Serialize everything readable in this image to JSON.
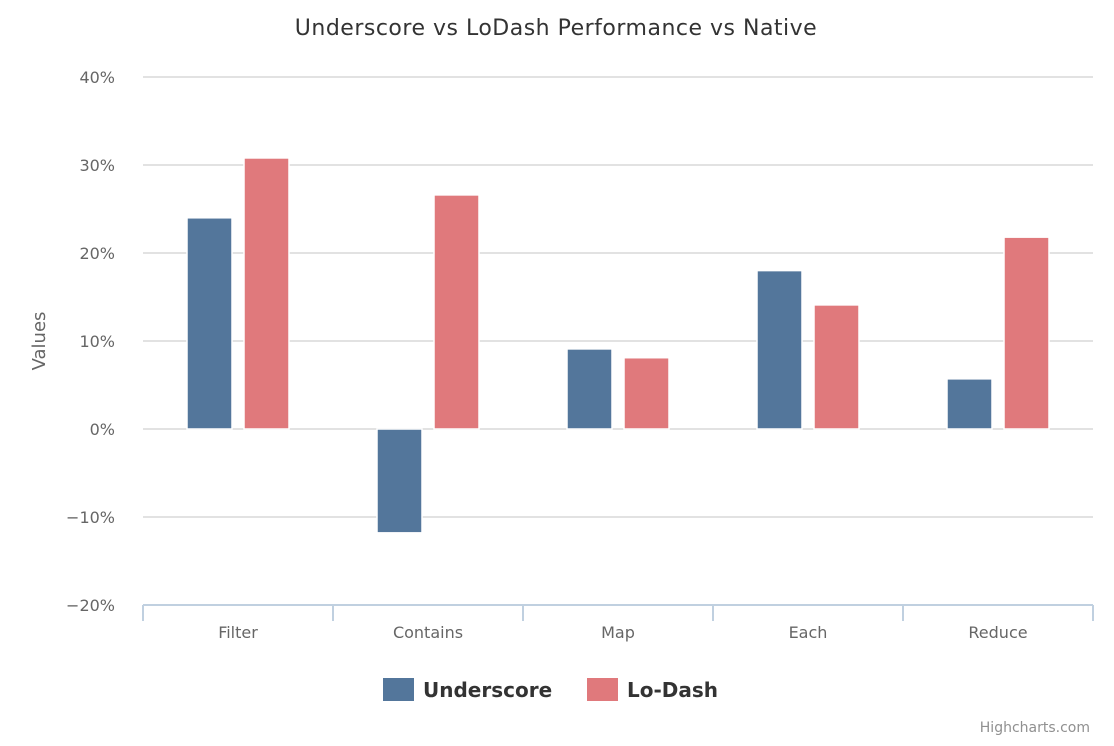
{
  "chart_data": {
    "type": "bar",
    "title": "Underscore vs LoDash Performance vs Native",
    "categories": [
      "Filter",
      "Contains",
      "Map",
      "Each",
      "Reduce"
    ],
    "series": [
      {
        "name": "Underscore",
        "color": "#53769b",
        "values": [
          24,
          -11.8,
          9.1,
          18,
          5.7
        ]
      },
      {
        "name": "Lo-Dash",
        "color": "#e0797c",
        "values": [
          30.8,
          26.6,
          8.1,
          14.1,
          21.8
        ]
      }
    ],
    "ylabel": "Values",
    "xlabel": "",
    "ylim": [
      -20,
      40
    ],
    "yticks": [
      40,
      30,
      20,
      10,
      0,
      -10,
      -20
    ],
    "ytick_labels": [
      "40%",
      "30%",
      "20%",
      "10%",
      "0%",
      "−10%",
      "−20%"
    ],
    "grid": true,
    "legend_position": "bottom-center"
  },
  "credits": "Highcharts.com"
}
